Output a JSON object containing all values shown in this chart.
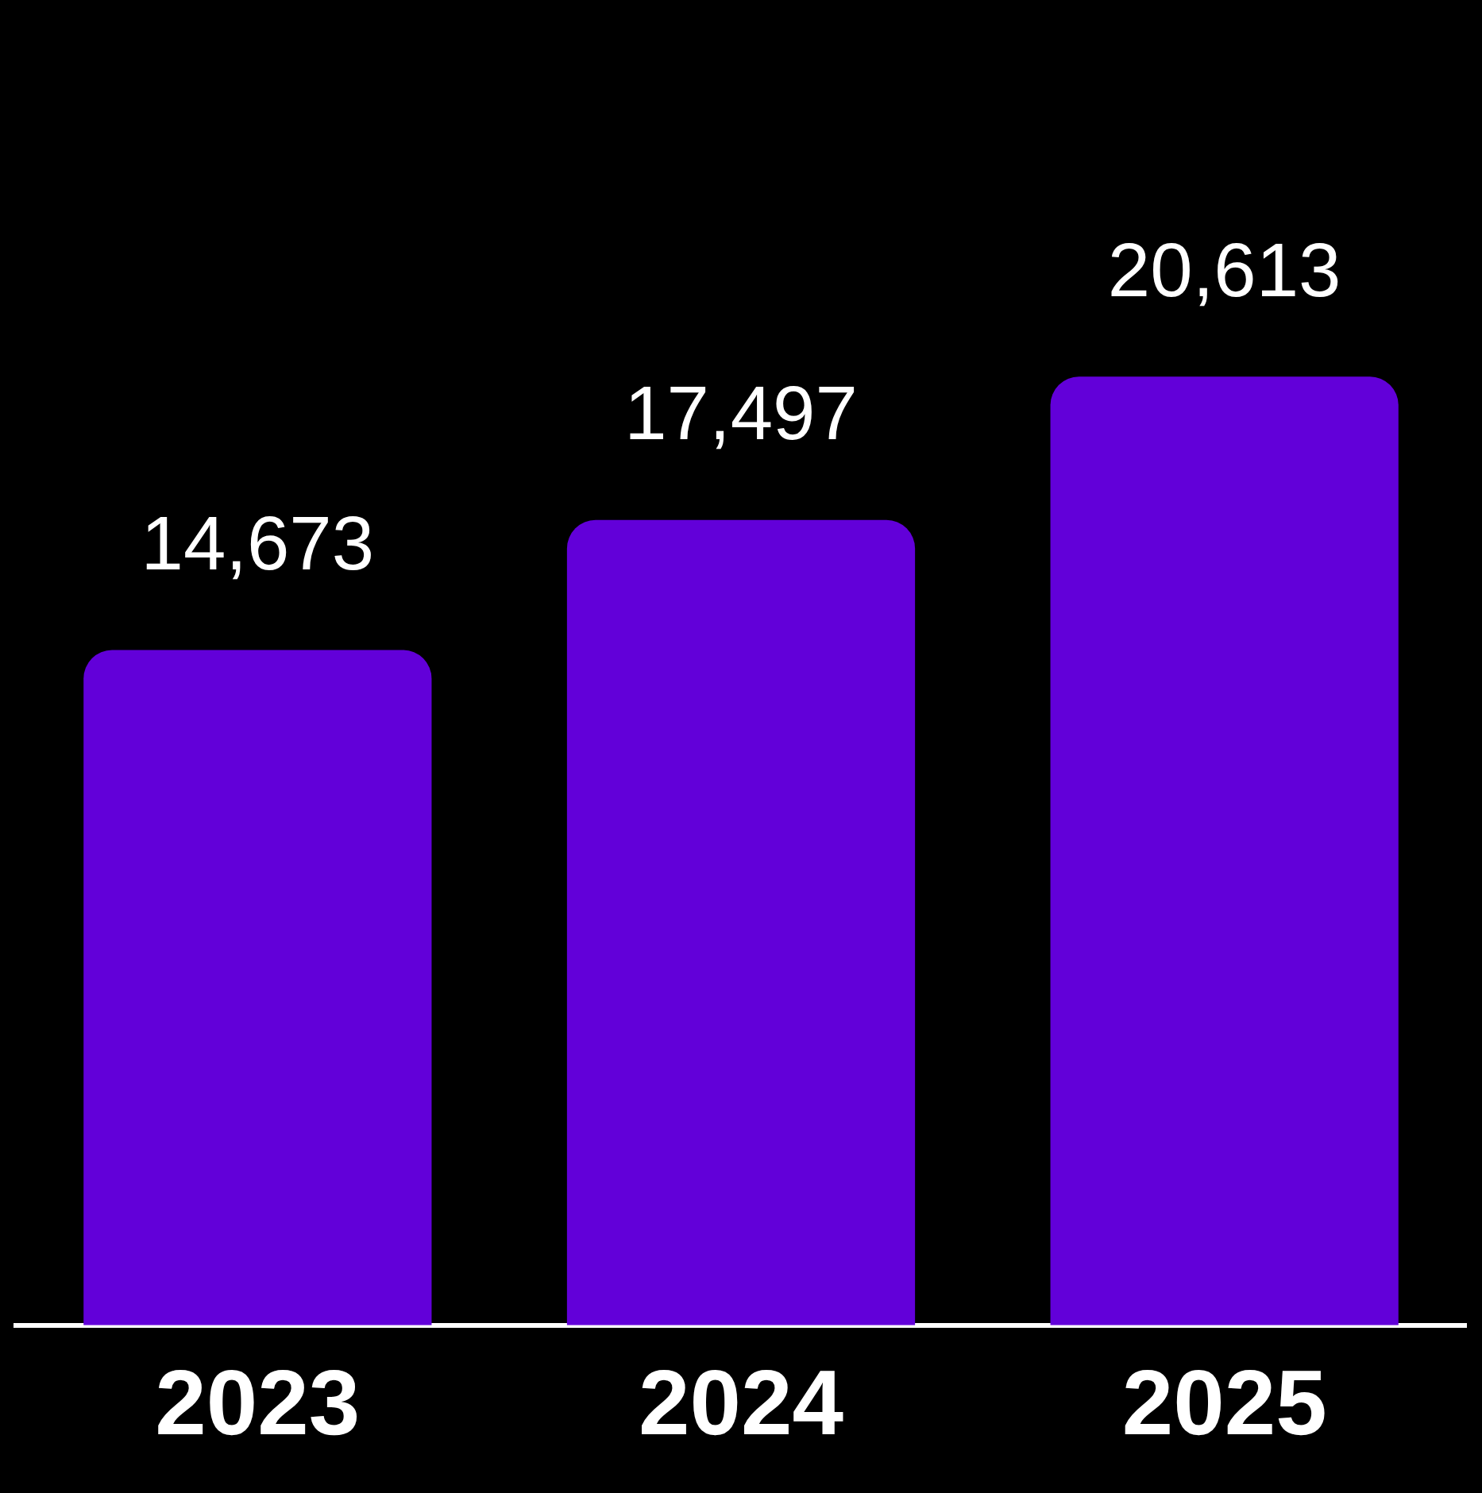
{
  "chart_data": {
    "type": "bar",
    "categories": [
      "2023",
      "2024",
      "2025"
    ],
    "values": [
      14673,
      17497,
      20613
    ],
    "value_labels": [
      "14,673",
      "17,497",
      "20,613"
    ],
    "color": "#6200d9",
    "grid": false,
    "legend": false
  }
}
